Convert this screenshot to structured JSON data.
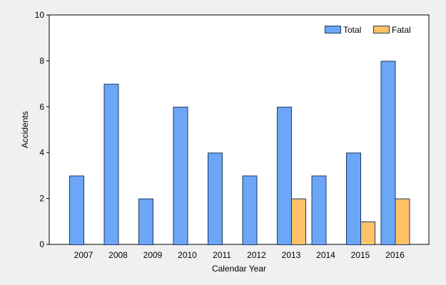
{
  "chart_data": {
    "type": "bar",
    "categories": [
      "2007",
      "2008",
      "2009",
      "2010",
      "2011",
      "2012",
      "2013",
      "2014",
      "2015",
      "2016"
    ],
    "series": [
      {
        "name": "Total",
        "values": [
          3,
          7,
          2,
          6,
          4,
          3,
          6,
          3,
          4,
          8
        ],
        "color": "#6ca6f6"
      },
      {
        "name": "Fatal",
        "values": [
          0,
          0,
          0,
          0,
          0,
          0,
          2,
          0,
          1,
          2
        ],
        "color": "#ffc266"
      }
    ],
    "title": "",
    "xlabel": "Calendar Year",
    "ylabel": "Accidents",
    "ylim": [
      0,
      10
    ],
    "yticks": [
      0,
      2,
      4,
      6,
      8,
      10
    ],
    "grid": false,
    "legend_position": "top-right"
  }
}
